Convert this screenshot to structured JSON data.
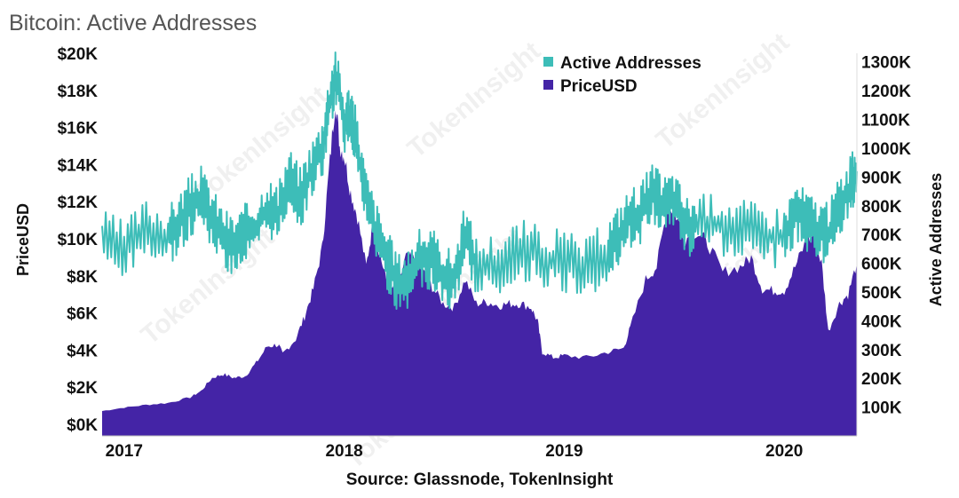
{
  "title": "Bitcoin: Active Addresses",
  "chart_data": {
    "type": "area+line",
    "title": "Bitcoin: Active Addresses",
    "source": "Source: Glassnode, TokenInsight",
    "watermark": "TokenInsight",
    "x_tick_labels": [
      "2017",
      "2018",
      "2019",
      "2020"
    ],
    "x_tick_positions": [
      2017.0,
      2018.0,
      2019.0,
      2020.0
    ],
    "x_range": [
      2016.9,
      2020.33
    ],
    "left_axis": {
      "label": "PriceUSD",
      "range": [
        0,
        20000
      ],
      "ticks": [
        0,
        2000,
        4000,
        6000,
        8000,
        10000,
        12000,
        14000,
        16000,
        18000,
        20000
      ],
      "tick_labels": [
        "$0K",
        "$2K",
        "$4K",
        "$6K",
        "$8K",
        "$10K",
        "$12K",
        "$14K",
        "$16K",
        "$18K",
        "$20K"
      ]
    },
    "right_axis": {
      "label": "Active Addresses",
      "range": [
        0,
        1330000
      ],
      "ticks": [
        100000,
        200000,
        300000,
        400000,
        500000,
        600000,
        700000,
        800000,
        900000,
        1000000,
        1100000,
        1200000,
        1300000
      ],
      "tick_labels": [
        "100K",
        "200K",
        "300K",
        "400K",
        "500K",
        "600K",
        "700K",
        "800K",
        "900K",
        "1000K",
        "1100K",
        "1200K",
        "1300K"
      ]
    },
    "legend": {
      "position": "top-center",
      "entries": [
        "Active Addresses",
        "PriceUSD"
      ]
    },
    "colors": {
      "active_addresses": "#3dbdb8",
      "price": "#4424a6",
      "axis": "#bbbbbb"
    },
    "series": [
      {
        "name": "PriceUSD",
        "axis": "left",
        "style": "area",
        "points": [
          [
            2016.9,
            720
          ],
          [
            2017.0,
            900
          ],
          [
            2017.1,
            1050
          ],
          [
            2017.2,
            1150
          ],
          [
            2017.3,
            1450
          ],
          [
            2017.35,
            1800
          ],
          [
            2017.4,
            2500
          ],
          [
            2017.45,
            2700
          ],
          [
            2017.5,
            2500
          ],
          [
            2017.55,
            2600
          ],
          [
            2017.6,
            3300
          ],
          [
            2017.65,
            4200
          ],
          [
            2017.7,
            4300
          ],
          [
            2017.72,
            3800
          ],
          [
            2017.78,
            4600
          ],
          [
            2017.82,
            5800
          ],
          [
            2017.86,
            7300
          ],
          [
            2017.9,
            9500
          ],
          [
            2017.93,
            13500
          ],
          [
            2017.96,
            17500
          ],
          [
            2017.98,
            15000
          ],
          [
            2018.0,
            14500
          ],
          [
            2018.03,
            12500
          ],
          [
            2018.06,
            11200
          ],
          [
            2018.1,
            8500
          ],
          [
            2018.13,
            10800
          ],
          [
            2018.17,
            8800
          ],
          [
            2018.2,
            7400
          ],
          [
            2018.24,
            7300
          ],
          [
            2018.28,
            9000
          ],
          [
            2018.32,
            8900
          ],
          [
            2018.36,
            8200
          ],
          [
            2018.4,
            7400
          ],
          [
            2018.45,
            6500
          ],
          [
            2018.5,
            6300
          ],
          [
            2018.55,
            7800
          ],
          [
            2018.6,
            6500
          ],
          [
            2018.65,
            6600
          ],
          [
            2018.7,
            6400
          ],
          [
            2018.75,
            6500
          ],
          [
            2018.8,
            6500
          ],
          [
            2018.85,
            6300
          ],
          [
            2018.88,
            5500
          ],
          [
            2018.9,
            3900
          ],
          [
            2018.95,
            3600
          ],
          [
            2019.0,
            3700
          ],
          [
            2019.1,
            3600
          ],
          [
            2019.2,
            3900
          ],
          [
            2019.27,
            4100
          ],
          [
            2019.3,
            5200
          ],
          [
            2019.37,
            7800
          ],
          [
            2019.42,
            8500
          ],
          [
            2019.47,
            11800
          ],
          [
            2019.5,
            11500
          ],
          [
            2019.55,
            10000
          ],
          [
            2019.6,
            10400
          ],
          [
            2019.65,
            9800
          ],
          [
            2019.72,
            8200
          ],
          [
            2019.8,
            8500
          ],
          [
            2019.85,
            9000
          ],
          [
            2019.9,
            7300
          ],
          [
            2019.95,
            7200
          ],
          [
            2020.0,
            7200
          ],
          [
            2020.05,
            8500
          ],
          [
            2020.1,
            9900
          ],
          [
            2020.13,
            10200
          ],
          [
            2020.17,
            8700
          ],
          [
            2020.2,
            5000
          ],
          [
            2020.25,
            6500
          ],
          [
            2020.29,
            7000
          ],
          [
            2020.33,
            8700
          ]
        ]
      },
      {
        "name": "Active Addresses",
        "axis": "right",
        "style": "line",
        "points": [
          [
            2016.9,
            680000
          ],
          [
            2017.0,
            640000
          ],
          [
            2017.1,
            720000
          ],
          [
            2017.2,
            690000
          ],
          [
            2017.25,
            740000
          ],
          [
            2017.3,
            800000
          ],
          [
            2017.35,
            830000
          ],
          [
            2017.4,
            760000
          ],
          [
            2017.45,
            690000
          ],
          [
            2017.5,
            660000
          ],
          [
            2017.55,
            700000
          ],
          [
            2017.6,
            720000
          ],
          [
            2017.65,
            800000
          ],
          [
            2017.7,
            760000
          ],
          [
            2017.75,
            900000
          ],
          [
            2017.8,
            830000
          ],
          [
            2017.85,
            920000
          ],
          [
            2017.9,
            1000000
          ],
          [
            2017.93,
            1140000
          ],
          [
            2017.96,
            1260000
          ],
          [
            2018.0,
            1080000
          ],
          [
            2018.03,
            1130000
          ],
          [
            2018.06,
            1000000
          ],
          [
            2018.1,
            820000
          ],
          [
            2018.15,
            700000
          ],
          [
            2018.2,
            600000
          ],
          [
            2018.25,
            530000
          ],
          [
            2018.3,
            560000
          ],
          [
            2018.35,
            620000
          ],
          [
            2018.4,
            610000
          ],
          [
            2018.45,
            560000
          ],
          [
            2018.5,
            540000
          ],
          [
            2018.55,
            700000
          ],
          [
            2018.6,
            590000
          ],
          [
            2018.7,
            600000
          ],
          [
            2018.8,
            650000
          ],
          [
            2018.9,
            620000
          ],
          [
            2019.0,
            610000
          ],
          [
            2019.1,
            580000
          ],
          [
            2019.2,
            650000
          ],
          [
            2019.25,
            700000
          ],
          [
            2019.3,
            760000
          ],
          [
            2019.35,
            780000
          ],
          [
            2019.4,
            840000
          ],
          [
            2019.45,
            800000
          ],
          [
            2019.5,
            820000
          ],
          [
            2019.55,
            730000
          ],
          [
            2019.6,
            730000
          ],
          [
            2019.7,
            740000
          ],
          [
            2019.8,
            720000
          ],
          [
            2019.9,
            700000
          ],
          [
            2020.0,
            690000
          ],
          [
            2020.05,
            780000
          ],
          [
            2020.1,
            750000
          ],
          [
            2020.15,
            720000
          ],
          [
            2020.2,
            700000
          ],
          [
            2020.25,
            800000
          ],
          [
            2020.3,
            860000
          ],
          [
            2020.33,
            920000
          ]
        ]
      }
    ]
  }
}
